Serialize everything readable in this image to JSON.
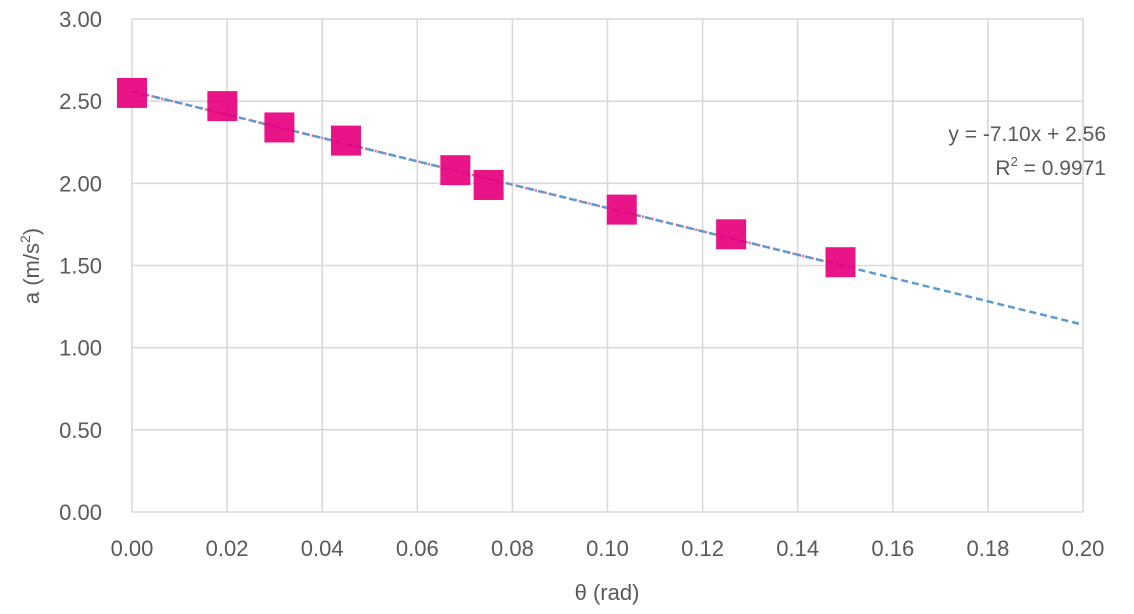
{
  "chart_data": {
    "type": "scatter",
    "title": "",
    "xlabel": "θ (rad)",
    "ylabel": "a (m/s²)",
    "ylabel_parts": {
      "prefix": "a (m/s",
      "sup": "2",
      "suffix": ")"
    },
    "xlim": [
      0,
      0.2
    ],
    "ylim": [
      0,
      3
    ],
    "x_ticks": [
      "0.00",
      "0.02",
      "0.04",
      "0.06",
      "0.08",
      "0.10",
      "0.12",
      "0.14",
      "0.16",
      "0.18",
      "0.20"
    ],
    "y_ticks": [
      "0.00",
      "0.50",
      "1.00",
      "1.50",
      "2.00",
      "2.50",
      "3.00"
    ],
    "grid": true,
    "legend": "none",
    "series": [
      {
        "marker": "square",
        "color": "#e6007e",
        "points": [
          {
            "x": 0.0,
            "y": 2.55
          },
          {
            "x": 0.019,
            "y": 2.47
          },
          {
            "x": 0.031,
            "y": 2.34
          },
          {
            "x": 0.045,
            "y": 2.26
          },
          {
            "x": 0.068,
            "y": 2.08
          },
          {
            "x": 0.075,
            "y": 1.99
          },
          {
            "x": 0.103,
            "y": 1.84
          },
          {
            "x": 0.126,
            "y": 1.69
          },
          {
            "x": 0.149,
            "y": 1.52
          }
        ]
      }
    ],
    "trendline": {
      "slope": -7.1,
      "intercept": 2.56,
      "x_range": [
        0,
        0.2
      ],
      "color": "#5b9bd5",
      "style": "dashed"
    },
    "connector": {
      "color": "#f06292",
      "style": "dotted"
    },
    "annotations": {
      "equation": "y = -7.10x + 2.56",
      "r2_prefix": "R",
      "r2_sup": "2",
      "r2_suffix": " = 0.9971"
    }
  }
}
